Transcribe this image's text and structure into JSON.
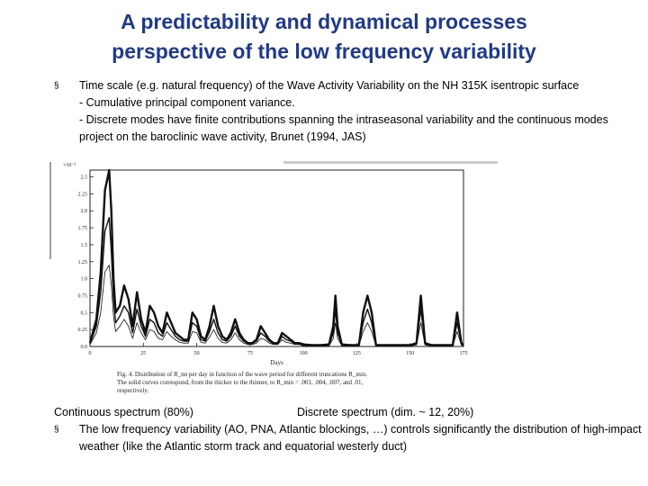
{
  "title_line1": "A predictability and dynamical processes",
  "title_line2": "perspective of the low frequency variability",
  "bullet_symbol": "§",
  "bullets": [
    "Time scale (e.g. natural frequency) of the Wave Activity Variability on the NH 315K isentropic surface",
    "- Cumulative principal component variance.",
    "- Discrete modes have finite contributions spanning the intraseasonal variability and the continuous modes project on the baroclinic wave activity, Brunet (1994, JAS)"
  ],
  "figure": {
    "caption_line1": "Fig. 4. Distribution of R_nn per day in function of the wave period for different truncations R_min.",
    "caption_line2": "The solid curves correspond, from the thicker to the thinner, to R_min = .001, .004, .007, and .01,",
    "caption_line3": "respectively."
  },
  "chart_data": {
    "type": "line",
    "title": "",
    "xlabel": "Days",
    "ylabel": "",
    "y_multiplier_label": "×10⁻²",
    "xlim": [
      0,
      175
    ],
    "ylim": [
      0,
      2.6
    ],
    "x_ticks": [
      0,
      25,
      50,
      75,
      100,
      125,
      150,
      175
    ],
    "y_ticks": [
      0,
      0.25,
      0.5,
      0.75,
      1.0,
      1.25,
      1.5,
      1.75,
      2.0,
      2.25,
      2.5
    ],
    "y_tick_labels": [
      "0.0",
      "0.25",
      "0.5",
      "0.75",
      "1.0",
      "1.25",
      "1.5",
      "1.75",
      "2.0",
      "2.25",
      "2.5"
    ],
    "series": [
      {
        "x": [
          0,
          3,
          5,
          7,
          9,
          10,
          11,
          12,
          14,
          16,
          18,
          20,
          22,
          24,
          26,
          28,
          30,
          32,
          34,
          36,
          38,
          40,
          42,
          44,
          46,
          48,
          50,
          52,
          54,
          56,
          58,
          60,
          62,
          64,
          66,
          68,
          70,
          72,
          74,
          76,
          78,
          80,
          82,
          84,
          86,
          88,
          90,
          92,
          94,
          96,
          98,
          100,
          104,
          108,
          112,
          114,
          115,
          116,
          118,
          122,
          126,
          128,
          130,
          132,
          134,
          140,
          146,
          150,
          153,
          155,
          157,
          160,
          165,
          170,
          172,
          174,
          175
        ],
        "y": [
          0.05,
          0.4,
          1.1,
          2.3,
          2.6,
          2.0,
          1.0,
          0.5,
          0.6,
          0.9,
          0.7,
          0.3,
          0.8,
          0.4,
          0.2,
          0.6,
          0.5,
          0.3,
          0.2,
          0.5,
          0.35,
          0.2,
          0.15,
          0.1,
          0.1,
          0.5,
          0.4,
          0.15,
          0.1,
          0.3,
          0.6,
          0.3,
          0.15,
          0.1,
          0.2,
          0.4,
          0.2,
          0.1,
          0.05,
          0.05,
          0.1,
          0.3,
          0.2,
          0.1,
          0.05,
          0.05,
          0.2,
          0.15,
          0.1,
          0.05,
          0.05,
          0.03,
          0.02,
          0.02,
          0.03,
          0.3,
          0.75,
          0.3,
          0.03,
          0.02,
          0.02,
          0.5,
          0.75,
          0.5,
          0.02,
          0.02,
          0.02,
          0.02,
          0.05,
          0.75,
          0.05,
          0.02,
          0.02,
          0.02,
          0.5,
          0.05,
          0.02
        ]
      },
      {
        "x": [
          0,
          3,
          5,
          7,
          9,
          10,
          11,
          12,
          14,
          16,
          18,
          20,
          22,
          24,
          26,
          28,
          30,
          32,
          34,
          36,
          38,
          40,
          42,
          44,
          46,
          48,
          50,
          52,
          54,
          56,
          58,
          60,
          62,
          64,
          66,
          68,
          70,
          72,
          74,
          76,
          78,
          80,
          82,
          84,
          86,
          88,
          90,
          92,
          94,
          96,
          98,
          100,
          104,
          108,
          112,
          114,
          115,
          116,
          118,
          122,
          126,
          128,
          130,
          132,
          134,
          140,
          146,
          150,
          153,
          155,
          157,
          160,
          165,
          170,
          172,
          174,
          175
        ],
        "y": [
          0.04,
          0.3,
          0.8,
          1.7,
          1.9,
          1.4,
          0.7,
          0.35,
          0.45,
          0.6,
          0.5,
          0.2,
          0.55,
          0.3,
          0.15,
          0.4,
          0.35,
          0.2,
          0.15,
          0.35,
          0.25,
          0.15,
          0.1,
          0.08,
          0.08,
          0.35,
          0.3,
          0.1,
          0.08,
          0.22,
          0.4,
          0.2,
          0.1,
          0.08,
          0.15,
          0.3,
          0.15,
          0.08,
          0.04,
          0.04,
          0.08,
          0.2,
          0.15,
          0.08,
          0.04,
          0.04,
          0.15,
          0.1,
          0.08,
          0.04,
          0.04,
          0.02,
          0.01,
          0.01,
          0.02,
          0.2,
          0.55,
          0.2,
          0.02,
          0.01,
          0.01,
          0.35,
          0.55,
          0.35,
          0.01,
          0.01,
          0.01,
          0.01,
          0.04,
          0.55,
          0.04,
          0.01,
          0.01,
          0.01,
          0.35,
          0.04,
          0.01
        ]
      },
      {
        "x": [
          0,
          3,
          5,
          7,
          9,
          10,
          11,
          12,
          14,
          16,
          18,
          20,
          22,
          24,
          26,
          28,
          30,
          32,
          34,
          36,
          38,
          40,
          42,
          44,
          46,
          48,
          50,
          52,
          54,
          56,
          58,
          60,
          62,
          64,
          66,
          68,
          70,
          72,
          74,
          76,
          78,
          80,
          82,
          84,
          86,
          88,
          90,
          92,
          94,
          96,
          98,
          100,
          104,
          108,
          112,
          114,
          115,
          116,
          118,
          122,
          126,
          128,
          130,
          132,
          134,
          140,
          146,
          150,
          153,
          155,
          157,
          160,
          165,
          170,
          172,
          174,
          175
        ],
        "y": [
          0.03,
          0.2,
          0.5,
          1.1,
          1.2,
          0.9,
          0.45,
          0.22,
          0.3,
          0.4,
          0.3,
          0.12,
          0.35,
          0.2,
          0.1,
          0.25,
          0.22,
          0.12,
          0.1,
          0.22,
          0.15,
          0.1,
          0.06,
          0.05,
          0.05,
          0.22,
          0.2,
          0.06,
          0.05,
          0.14,
          0.25,
          0.12,
          0.06,
          0.05,
          0.1,
          0.2,
          0.1,
          0.05,
          0.03,
          0.03,
          0.05,
          0.12,
          0.1,
          0.05,
          0.03,
          0.03,
          0.1,
          0.06,
          0.05,
          0.03,
          0.03,
          0.01,
          0.01,
          0.01,
          0.01,
          0.12,
          0.35,
          0.12,
          0.01,
          0.01,
          0.01,
          0.22,
          0.35,
          0.22,
          0.01,
          0.01,
          0.01,
          0.01,
          0.02,
          0.35,
          0.02,
          0.01,
          0.01,
          0.01,
          0.22,
          0.02,
          0.01
        ]
      }
    ]
  },
  "label_continuous": "Continuous spectrum (80%)",
  "label_discrete": "Discrete spectrum (dim. ~ 12, 20%)",
  "bullet2": "The low frequency variability (AO, PNA, Atlantic blockings, …) controls significantly the distribution of high-impact weather (like the Atlantic storm track and equatorial westerly duct)",
  "colors": {
    "title": "#1f3a8a",
    "text": "#000000",
    "plot_line": "#111111"
  }
}
